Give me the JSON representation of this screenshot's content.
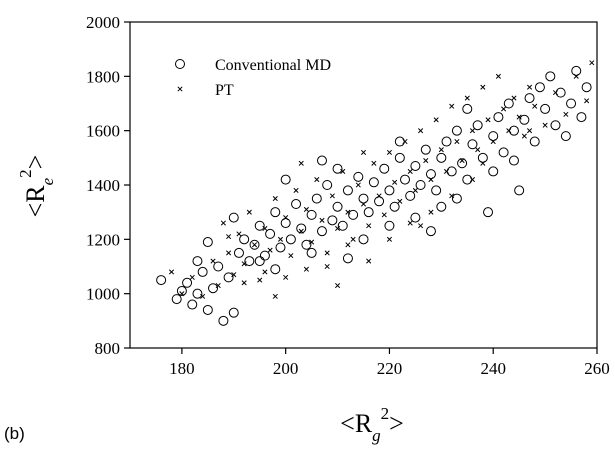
{
  "panel_label": "(b)",
  "chart_data": {
    "type": "scatter",
    "xlabel": {
      "open": "<R",
      "sub": "g",
      "sup": "2",
      "close": ">"
    },
    "ylabel": {
      "open": "<R",
      "sub": "e",
      "sup": "2",
      "close": ">"
    },
    "xlim": [
      170,
      260
    ],
    "ylim": [
      800,
      2000
    ],
    "xticks": [
      "180",
      "200",
      "220",
      "240",
      "260"
    ],
    "yticks": [
      "800",
      "1000",
      "1200",
      "1400",
      "1600",
      "1800",
      "2000"
    ],
    "grid": false,
    "legend_position": "top-left",
    "series": [
      {
        "name": "Conventional MD",
        "marker": "circle",
        "points": [
          [
            176,
            1050
          ],
          [
            179,
            980
          ],
          [
            180,
            1010
          ],
          [
            181,
            1040
          ],
          [
            182,
            960
          ],
          [
            183,
            1000
          ],
          [
            184,
            1080
          ],
          [
            185,
            940
          ],
          [
            186,
            1020
          ],
          [
            187,
            1100
          ],
          [
            188,
            900
          ],
          [
            189,
            1060
          ],
          [
            190,
            930
          ],
          [
            191,
            1150
          ],
          [
            192,
            1200
          ],
          [
            193,
            1120
          ],
          [
            194,
            1180
          ],
          [
            195,
            1250
          ],
          [
            196,
            1140
          ],
          [
            197,
            1220
          ],
          [
            198,
            1300
          ],
          [
            199,
            1170
          ],
          [
            200,
            1260
          ],
          [
            201,
            1200
          ],
          [
            202,
            1330
          ],
          [
            203,
            1240
          ],
          [
            204,
            1180
          ],
          [
            205,
            1290
          ],
          [
            206,
            1350
          ],
          [
            207,
            1230
          ],
          [
            208,
            1400
          ],
          [
            209,
            1270
          ],
          [
            210,
            1320
          ],
          [
            211,
            1250
          ],
          [
            212,
            1380
          ],
          [
            213,
            1290
          ],
          [
            214,
            1430
          ],
          [
            215,
            1350
          ],
          [
            216,
            1300
          ],
          [
            217,
            1410
          ],
          [
            218,
            1340
          ],
          [
            219,
            1460
          ],
          [
            220,
            1380
          ],
          [
            221,
            1320
          ],
          [
            222,
            1500
          ],
          [
            223,
            1420
          ],
          [
            224,
            1360
          ],
          [
            225,
            1470
          ],
          [
            226,
            1400
          ],
          [
            227,
            1530
          ],
          [
            228,
            1440
          ],
          [
            229,
            1380
          ],
          [
            230,
            1500
          ],
          [
            231,
            1560
          ],
          [
            232,
            1450
          ],
          [
            233,
            1600
          ],
          [
            234,
            1480
          ],
          [
            235,
            1420
          ],
          [
            236,
            1550
          ],
          [
            237,
            1620
          ],
          [
            238,
            1500
          ],
          [
            239,
            1300
          ],
          [
            240,
            1580
          ],
          [
            241,
            1650
          ],
          [
            242,
            1520
          ],
          [
            243,
            1700
          ],
          [
            244,
            1600
          ],
          [
            245,
            1380
          ],
          [
            246,
            1640
          ],
          [
            247,
            1720
          ],
          [
            248,
            1560
          ],
          [
            249,
            1760
          ],
          [
            250,
            1680
          ],
          [
            251,
            1800
          ],
          [
            252,
            1620
          ],
          [
            253,
            1740
          ],
          [
            254,
            1580
          ],
          [
            255,
            1700
          ],
          [
            256,
            1820
          ],
          [
            257,
            1650
          ],
          [
            258,
            1760
          ],
          [
            185,
            1190
          ],
          [
            190,
            1280
          ],
          [
            195,
            1120
          ],
          [
            200,
            1420
          ],
          [
            205,
            1150
          ],
          [
            210,
            1460
          ],
          [
            215,
            1200
          ],
          [
            220,
            1250
          ],
          [
            225,
            1280
          ],
          [
            230,
            1320
          ],
          [
            235,
            1680
          ],
          [
            240,
            1450
          ],
          [
            228,
            1230
          ],
          [
            212,
            1130
          ],
          [
            198,
            1090
          ],
          [
            183,
            1120
          ],
          [
            207,
            1490
          ],
          [
            222,
            1560
          ],
          [
            233,
            1350
          ],
          [
            244,
            1490
          ]
        ]
      },
      {
        "name": "PT",
        "marker": "x",
        "points": [
          [
            178,
            1080
          ],
          [
            180,
            1000
          ],
          [
            182,
            1060
          ],
          [
            184,
            990
          ],
          [
            186,
            1120
          ],
          [
            187,
            1030
          ],
          [
            188,
            1260
          ],
          [
            189,
            1150
          ],
          [
            190,
            1070
          ],
          [
            191,
            1220
          ],
          [
            192,
            1110
          ],
          [
            193,
            1300
          ],
          [
            194,
            1180
          ],
          [
            195,
            1050
          ],
          [
            196,
            1240
          ],
          [
            197,
            1160
          ],
          [
            198,
            1350
          ],
          [
            199,
            1200
          ],
          [
            200,
            1280
          ],
          [
            201,
            1140
          ],
          [
            202,
            1380
          ],
          [
            203,
            1230
          ],
          [
            204,
            1310
          ],
          [
            205,
            1190
          ],
          [
            206,
            1420
          ],
          [
            207,
            1270
          ],
          [
            208,
            1100
          ],
          [
            209,
            1360
          ],
          [
            210,
            1240
          ],
          [
            211,
            1450
          ],
          [
            212,
            1300
          ],
          [
            213,
            1200
          ],
          [
            214,
            1400
          ],
          [
            215,
            1330
          ],
          [
            216,
            1250
          ],
          [
            217,
            1480
          ],
          [
            218,
            1360
          ],
          [
            219,
            1290
          ],
          [
            220,
            1520
          ],
          [
            221,
            1410
          ],
          [
            222,
            1340
          ],
          [
            223,
            1560
          ],
          [
            224,
            1450
          ],
          [
            225,
            1380
          ],
          [
            226,
            1600
          ],
          [
            227,
            1490
          ],
          [
            228,
            1420
          ],
          [
            229,
            1640
          ],
          [
            230,
            1530
          ],
          [
            231,
            1450
          ],
          [
            232,
            1690
          ],
          [
            233,
            1560
          ],
          [
            234,
            1490
          ],
          [
            235,
            1720
          ],
          [
            236,
            1600
          ],
          [
            237,
            1530
          ],
          [
            238,
            1760
          ],
          [
            239,
            1640
          ],
          [
            240,
            1560
          ],
          [
            241,
            1800
          ],
          [
            242,
            1680
          ],
          [
            243,
            1600
          ],
          [
            244,
            1720
          ],
          [
            245,
            1650
          ],
          [
            246,
            1580
          ],
          [
            247,
            1760
          ],
          [
            248,
            1690
          ],
          [
            250,
            1620
          ],
          [
            252,
            1740
          ],
          [
            254,
            1660
          ],
          [
            256,
            1800
          ],
          [
            258,
            1710
          ],
          [
            259,
            1850
          ],
          [
            192,
            1040
          ],
          [
            196,
            1080
          ],
          [
            200,
            1060
          ],
          [
            204,
            1090
          ],
          [
            208,
            1150
          ],
          [
            212,
            1180
          ],
          [
            216,
            1120
          ],
          [
            220,
            1200
          ],
          [
            224,
            1260
          ],
          [
            228,
            1300
          ],
          [
            232,
            1360
          ],
          [
            236,
            1420
          ],
          [
            189,
            1210
          ],
          [
            203,
            1480
          ],
          [
            215,
            1520
          ],
          [
            226,
            1250
          ],
          [
            238,
            1480
          ],
          [
            247,
            1600
          ],
          [
            198,
            990
          ],
          [
            210,
            1030
          ]
        ]
      }
    ]
  }
}
